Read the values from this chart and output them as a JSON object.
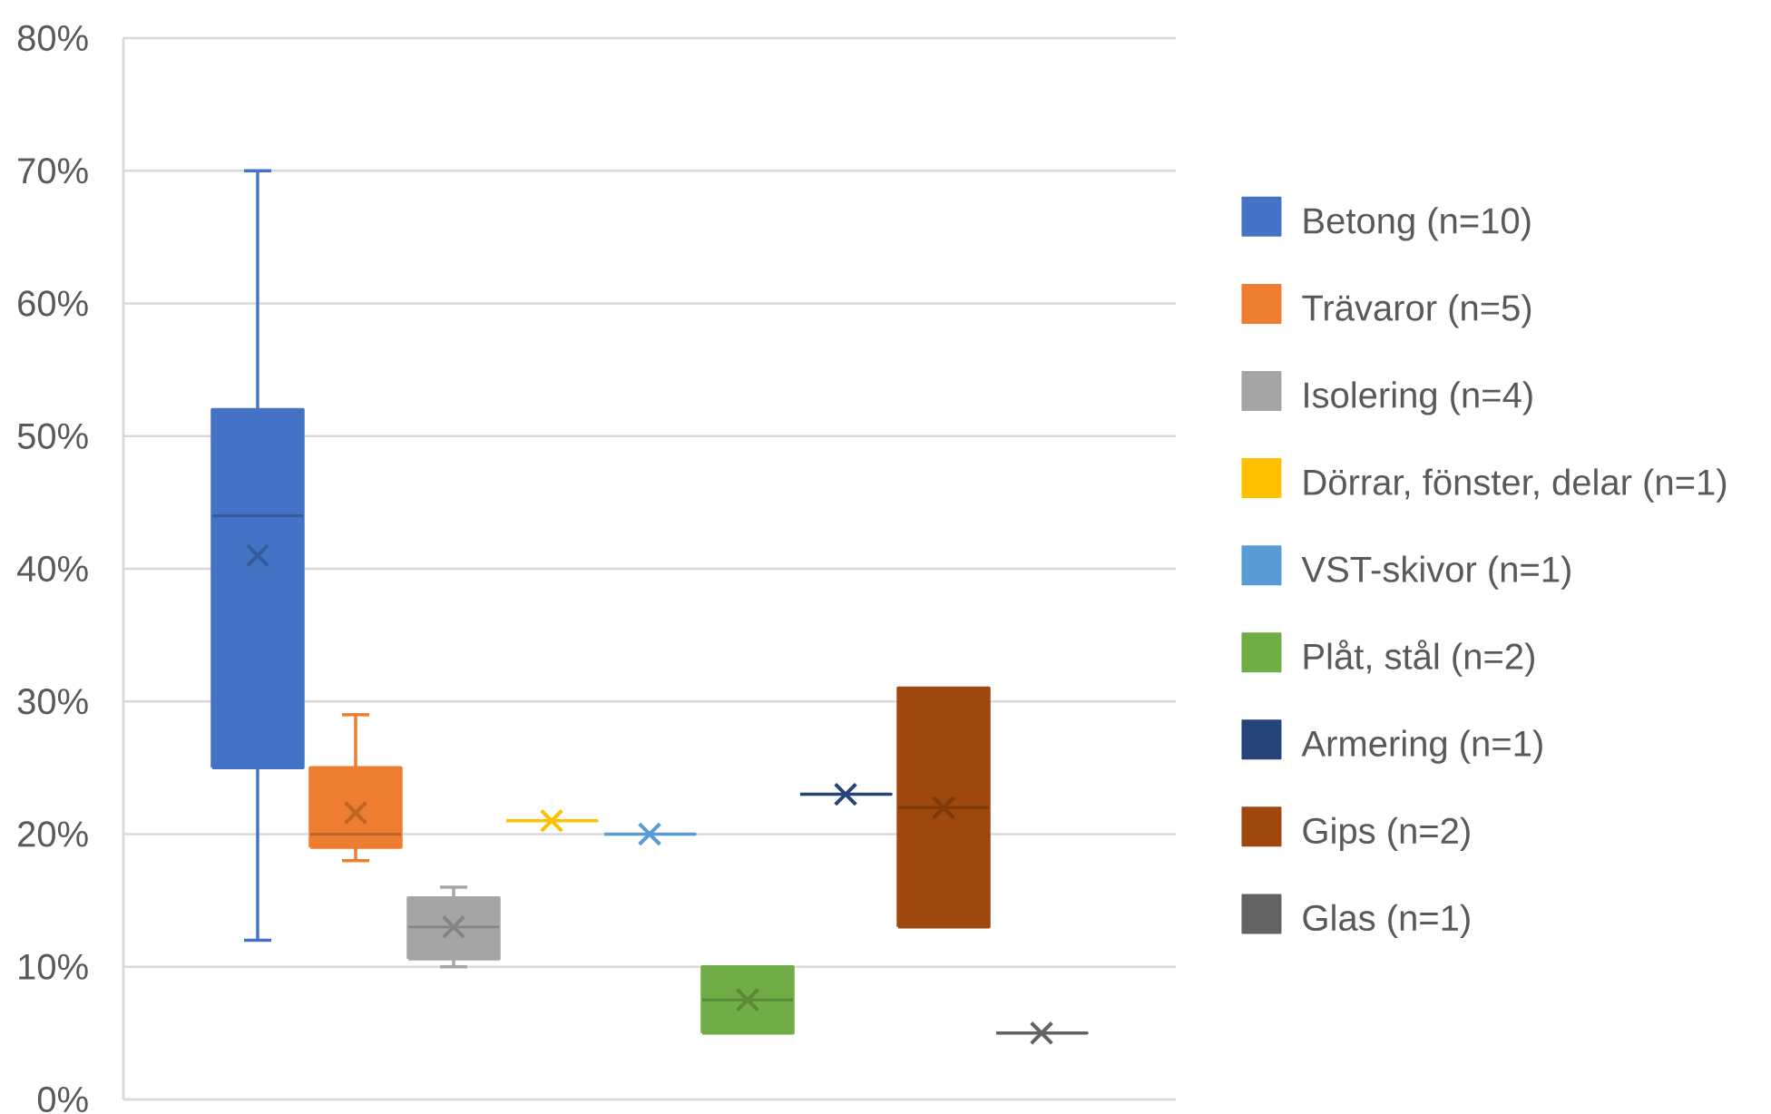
{
  "chart_data": {
    "type": "box",
    "categories": [
      null
    ],
    "ylim": [
      0,
      80
    ],
    "yticks": [
      {
        "value": 0,
        "label": "0%"
      },
      {
        "value": 10,
        "label": "10%"
      },
      {
        "value": 20,
        "label": "20%"
      },
      {
        "value": 30,
        "label": "30%"
      },
      {
        "value": 40,
        "label": "40%"
      },
      {
        "value": 50,
        "label": "50%"
      },
      {
        "value": 60,
        "label": "60%"
      },
      {
        "value": 70,
        "label": "70%"
      },
      {
        "value": 80,
        "label": "80%"
      }
    ],
    "grid": "y",
    "legend": "right",
    "series": [
      {
        "name": "Betong (n=10)",
        "color": "#4472c4",
        "boxes": [
          {
            "low": 12,
            "q1": 25,
            "median": 44,
            "q3": 52,
            "high": 70,
            "mean": 41
          }
        ]
      },
      {
        "name": "Trävaror (n=5)",
        "color": "#ed7d31",
        "boxes": [
          {
            "low": 18,
            "q1": 19,
            "median": 20,
            "q3": 25,
            "high": 29,
            "mean": 21.6
          }
        ]
      },
      {
        "name": "Isolering (n=4)",
        "color": "#a5a5a5",
        "boxes": [
          {
            "low": 10,
            "q1": 10.6,
            "median": 13,
            "q3": 15.2,
            "high": 16,
            "mean": 13
          }
        ]
      },
      {
        "name": "Dörrar, fönster, delar (n=1)",
        "color": "#ffc000",
        "boxes": [
          {
            "low": 21,
            "q1": 21,
            "median": 21,
            "q3": 21,
            "high": 21,
            "mean": 21
          }
        ]
      },
      {
        "name": "VST-skivor (n=1)",
        "color": "#5b9bd5",
        "boxes": [
          {
            "low": 20,
            "q1": 20,
            "median": 20,
            "q3": 20,
            "high": 20,
            "mean": 20
          }
        ]
      },
      {
        "name": "Plåt, stål (n=2)",
        "color": "#70ad47",
        "boxes": [
          {
            "low": 5,
            "q1": 5,
            "median": 7.5,
            "q3": 10,
            "high": 10,
            "mean": 7.5
          }
        ]
      },
      {
        "name": "Armering (n=1)",
        "color": "#264478",
        "boxes": [
          {
            "low": 23,
            "q1": 23,
            "median": 23,
            "q3": 23,
            "high": 23,
            "mean": 23
          }
        ]
      },
      {
        "name": "Gips (n=2)",
        "color": "#9e480e",
        "boxes": [
          {
            "low": 13,
            "q1": 13,
            "median": 22,
            "q3": 31,
            "high": 31,
            "mean": 22
          }
        ]
      },
      {
        "name": "Glas (n=1)",
        "color": "#636363",
        "boxes": [
          {
            "low": 5,
            "q1": 5,
            "median": 5,
            "q3": 5,
            "high": 5,
            "mean": 5
          }
        ]
      }
    ]
  }
}
